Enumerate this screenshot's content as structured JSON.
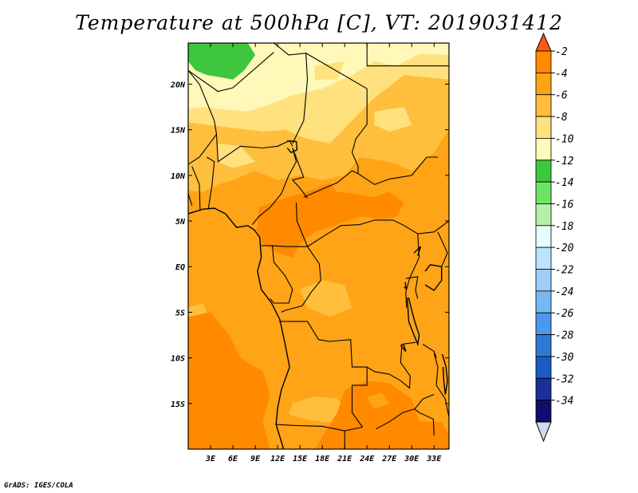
{
  "chart_data": {
    "type": "heatmap",
    "title": "Temperature at 500hPa [C], VT: 2019031412",
    "variable": "Temperature at 500hPa",
    "units": "C",
    "valid_time": "2019031412",
    "x_axis": {
      "ticks": [
        3,
        6,
        9,
        12,
        15,
        18,
        21,
        24,
        27,
        30,
        33
      ],
      "tick_labels": [
        "3E",
        "6E",
        "9E",
        "12E",
        "15E",
        "18E",
        "21E",
        "24E",
        "27E",
        "30E",
        "33E"
      ],
      "range": [
        0,
        35
      ]
    },
    "y_axis": {
      "ticks": [
        20,
        15,
        10,
        5,
        0,
        -5,
        -10,
        -15
      ],
      "tick_labels": [
        "20N",
        "15N",
        "10N",
        "5N",
        "EQ",
        "5S",
        "10S",
        "15S"
      ],
      "range": [
        -20,
        24.5
      ]
    },
    "colorbar": {
      "levels": [
        -2,
        -4,
        -6,
        -8,
        -10,
        -12,
        -14,
        -16,
        -18,
        -20,
        -22,
        -24,
        -26,
        -28,
        -30,
        -32,
        -34
      ],
      "labels": [
        "-2",
        "-4",
        "-6",
        "-8",
        "-10",
        "-12",
        "-14",
        "-16",
        "-18",
        "-20",
        "-22",
        "-24",
        "-26",
        "-28",
        "-30",
        "-32",
        "-34"
      ],
      "colors": [
        "#ff5a14",
        "#ff8a00",
        "#ffa416",
        "#ffbf3c",
        "#ffe17e",
        "#fff8b8",
        "#3ec63e",
        "#6ee466",
        "#b3f0a8",
        "#e6fcf6",
        "#bde3ff",
        "#9dcdf8",
        "#77b7f2",
        "#4c98ec",
        "#2d7ad6",
        "#1b5cc2",
        "#1a2f9c",
        "#0d0d6e",
        "#d5d5f5"
      ]
    },
    "field_description": [
      {
        "range": "-10 to -12",
        "region": "northern fringe, 20-24N"
      },
      {
        "range": "-12 to -14",
        "region": "northwest corner near 22N 1-6E"
      },
      {
        "range": "-4 to -6",
        "region": "most of central Africa"
      },
      {
        "range": "-2 to -4",
        "region": "Cameroon / CAR 3-8N, Angola coast, southern Zambia"
      }
    ]
  },
  "credit": "GrADS: IGES/COLA"
}
